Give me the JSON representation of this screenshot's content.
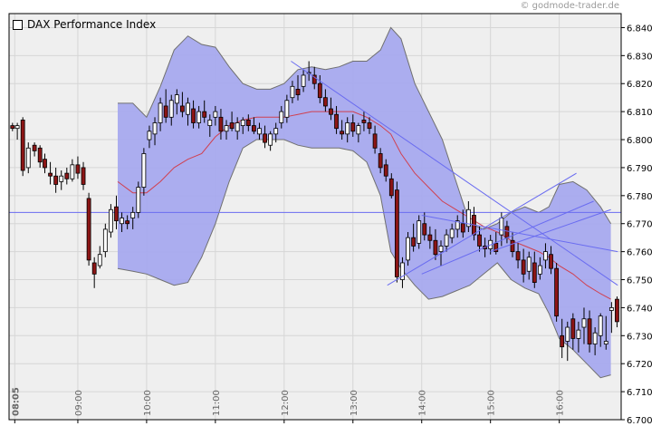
{
  "copyright": "© godmode-trader.de",
  "legend": {
    "label": "DAX Performance Index"
  },
  "colors": {
    "plot_bg": "#efefef",
    "band_fill": "#a7a9ee",
    "band_edge": "#707070",
    "mid_line": "#d04050",
    "trend_line": "#6a6cf0",
    "candle_down": "#8c1515",
    "candle_up": "#ffffff",
    "candle_edge": "#000000"
  },
  "chart_data": {
    "type": "candlestick",
    "title": "DAX Performance Index",
    "ylim": [
      6700,
      6845
    ],
    "y_ticks": [
      "6.700",
      "6.710",
      "6.720",
      "6.730",
      "6.740",
      "6.750",
      "6.760",
      "6.770",
      "6.780",
      "6.790",
      "6.800",
      "6.810",
      "6.820",
      "6.830",
      "6.840"
    ],
    "x_range": [
      8.0,
      16.9
    ],
    "x_ticks": [
      {
        "t": 8.083,
        "label": "08:05",
        "bold": true
      },
      {
        "t": 9.0,
        "label": "09:00"
      },
      {
        "t": 10.0,
        "label": "10:00"
      },
      {
        "t": 11.0,
        "label": "11:00"
      },
      {
        "t": 12.0,
        "label": "12:00"
      },
      {
        "t": 13.0,
        "label": "13:00"
      },
      {
        "t": 14.0,
        "label": "14:00"
      },
      {
        "t": 15.0,
        "label": "15:00"
      },
      {
        "t": 16.0,
        "label": "16:00"
      }
    ],
    "grid": true,
    "horizontal_line": 6774,
    "bollinger_upper": [
      [
        9.58,
        6813
      ],
      [
        9.8,
        6813
      ],
      [
        10.0,
        6808
      ],
      [
        10.2,
        6819
      ],
      [
        10.4,
        6832
      ],
      [
        10.6,
        6837
      ],
      [
        10.8,
        6834
      ],
      [
        11.0,
        6833
      ],
      [
        11.2,
        6826
      ],
      [
        11.4,
        6820
      ],
      [
        11.6,
        6818
      ],
      [
        11.8,
        6818
      ],
      [
        12.0,
        6820
      ],
      [
        12.2,
        6825
      ],
      [
        12.4,
        6826
      ],
      [
        12.6,
        6825
      ],
      [
        12.8,
        6826
      ],
      [
        13.0,
        6828
      ],
      [
        13.2,
        6828
      ],
      [
        13.4,
        6832
      ],
      [
        13.55,
        6840
      ],
      [
        13.7,
        6836
      ],
      [
        13.9,
        6820
      ],
      [
        14.1,
        6810
      ],
      [
        14.3,
        6800
      ],
      [
        14.5,
        6785
      ],
      [
        14.7,
        6770
      ],
      [
        14.9,
        6768
      ],
      [
        15.1,
        6770
      ],
      [
        15.3,
        6774
      ],
      [
        15.5,
        6776
      ],
      [
        15.7,
        6774
      ],
      [
        15.85,
        6776
      ],
      [
        16.0,
        6784
      ],
      [
        16.2,
        6785
      ],
      [
        16.4,
        6782
      ],
      [
        16.6,
        6776
      ],
      [
        16.75,
        6770
      ]
    ],
    "bollinger_lower": [
      [
        9.58,
        6754
      ],
      [
        9.8,
        6753
      ],
      [
        10.0,
        6752
      ],
      [
        10.2,
        6750
      ],
      [
        10.4,
        6748
      ],
      [
        10.6,
        6749
      ],
      [
        10.8,
        6758
      ],
      [
        11.0,
        6770
      ],
      [
        11.2,
        6785
      ],
      [
        11.4,
        6797
      ],
      [
        11.6,
        6800
      ],
      [
        11.8,
        6800
      ],
      [
        12.0,
        6800
      ],
      [
        12.2,
        6798
      ],
      [
        12.4,
        6797
      ],
      [
        12.6,
        6797
      ],
      [
        12.8,
        6797
      ],
      [
        13.0,
        6796
      ],
      [
        13.2,
        6792
      ],
      [
        13.4,
        6780
      ],
      [
        13.55,
        6760
      ],
      [
        13.7,
        6754
      ],
      [
        13.9,
        6748
      ],
      [
        14.1,
        6743
      ],
      [
        14.3,
        6744
      ],
      [
        14.5,
        6746
      ],
      [
        14.7,
        6748
      ],
      [
        14.9,
        6752
      ],
      [
        15.1,
        6756
      ],
      [
        15.3,
        6750
      ],
      [
        15.5,
        6747
      ],
      [
        15.7,
        6745
      ],
      [
        15.85,
        6738
      ],
      [
        16.0,
        6729
      ],
      [
        16.2,
        6725
      ],
      [
        16.4,
        6720
      ],
      [
        16.6,
        6715
      ],
      [
        16.75,
        6716
      ]
    ],
    "moving_average": [
      [
        9.58,
        6785
      ],
      [
        9.8,
        6781
      ],
      [
        10.0,
        6781
      ],
      [
        10.2,
        6785
      ],
      [
        10.4,
        6790
      ],
      [
        10.6,
        6793
      ],
      [
        10.8,
        6795
      ],
      [
        11.0,
        6801
      ],
      [
        11.2,
        6805
      ],
      [
        11.4,
        6807
      ],
      [
        11.6,
        6808
      ],
      [
        11.8,
        6808
      ],
      [
        12.0,
        6808
      ],
      [
        12.2,
        6809
      ],
      [
        12.4,
        6810
      ],
      [
        12.6,
        6810
      ],
      [
        12.8,
        6810
      ],
      [
        13.0,
        6810
      ],
      [
        13.2,
        6808
      ],
      [
        13.4,
        6805
      ],
      [
        13.55,
        6802
      ],
      [
        13.7,
        6795
      ],
      [
        13.9,
        6788
      ],
      [
        14.1,
        6783
      ],
      [
        14.3,
        6778
      ],
      [
        14.5,
        6775
      ],
      [
        14.7,
        6772
      ],
      [
        14.9,
        6769
      ],
      [
        15.1,
        6767
      ],
      [
        15.3,
        6764
      ],
      [
        15.5,
        6762
      ],
      [
        15.7,
        6760
      ],
      [
        15.85,
        6758
      ],
      [
        16.0,
        6755
      ],
      [
        16.2,
        6752
      ],
      [
        16.4,
        6748
      ],
      [
        16.6,
        6745
      ],
      [
        16.75,
        6743
      ]
    ],
    "trend_lines": [
      [
        [
          12.1,
          6828
        ],
        [
          16.85,
          6748
        ]
      ],
      [
        [
          13.5,
          6748
        ],
        [
          16.25,
          6788
        ]
      ],
      [
        [
          14.0,
          6752
        ],
        [
          16.5,
          6778
        ]
      ],
      [
        [
          14.0,
          6773
        ],
        [
          16.85,
          6760
        ]
      ],
      [
        [
          15.0,
          6760
        ],
        [
          16.75,
          6775
        ]
      ]
    ],
    "candles": [
      [
        8.05,
        6805,
        6806,
        6803,
        6804
      ],
      [
        8.12,
        6804,
        6806,
        6800,
        6805
      ],
      [
        8.2,
        6807,
        6808,
        6787,
        6789
      ],
      [
        8.28,
        6790,
        6799,
        6788,
        6797
      ],
      [
        8.37,
        6798,
        6799,
        6794,
        6796
      ],
      [
        8.45,
        6797,
        6798,
        6790,
        6792
      ],
      [
        8.52,
        6793,
        6795,
        6788,
        6790
      ],
      [
        8.6,
        6788,
        6792,
        6784,
        6787
      ],
      [
        8.68,
        6787,
        6790,
        6781,
        6784
      ],
      [
        8.76,
        6785,
        6789,
        6782,
        6787
      ],
      [
        8.84,
        6788,
        6790,
        6784,
        6786
      ],
      [
        8.92,
        6786,
        6793,
        6785,
        6791
      ],
      [
        9.0,
        6791,
        6794,
        6786,
        6788
      ],
      [
        9.08,
        6790,
        6792,
        6782,
        6784
      ],
      [
        9.16,
        6779,
        6781,
        6755,
        6757
      ],
      [
        9.24,
        6756,
        6758,
        6747,
        6752
      ],
      [
        9.32,
        6755,
        6762,
        6754,
        6759
      ],
      [
        9.4,
        6760,
        6770,
        6758,
        6768
      ],
      [
        9.48,
        6767,
        6777,
        6765,
        6775
      ],
      [
        9.56,
        6776,
        6780,
        6768,
        6771
      ],
      [
        9.64,
        6770,
        6774,
        6767,
        6772
      ],
      [
        9.72,
        6771,
        6773,
        6768,
        6770
      ],
      [
        9.8,
        6772,
        6776,
        6768,
        6774
      ],
      [
        9.88,
        6774,
        6785,
        6772,
        6783
      ],
      [
        9.96,
        6783,
        6797,
        6780,
        6795
      ],
      [
        10.04,
        6800,
        6805,
        6797,
        6803
      ],
      [
        10.12,
        6802,
        6808,
        6798,
        6806
      ],
      [
        10.2,
        6806,
        6815,
        6803,
        6813
      ],
      [
        10.28,
        6812,
        6818,
        6806,
        6808
      ],
      [
        10.36,
        6808,
        6816,
        6805,
        6814
      ],
      [
        10.44,
        6813,
        6818,
        6809,
        6816
      ],
      [
        10.52,
        6812,
        6817,
        6808,
        6810
      ],
      [
        10.6,
        6809,
        6815,
        6805,
        6813
      ],
      [
        10.68,
        6811,
        6814,
        6804,
        6806
      ],
      [
        10.76,
        6806,
        6812,
        6804,
        6810
      ],
      [
        10.84,
        6810,
        6814,
        6806,
        6808
      ],
      [
        10.92,
        6805,
        6809,
        6801,
        6807
      ],
      [
        11.0,
        6808,
        6812,
        6805,
        6810
      ],
      [
        11.08,
        6808,
        6811,
        6800,
        6803
      ],
      [
        11.16,
        6803,
        6807,
        6800,
        6805
      ],
      [
        11.24,
        6806,
        6810,
        6803,
        6804
      ],
      [
        11.32,
        6803,
        6808,
        6800,
        6806
      ],
      [
        11.4,
        6805,
        6808,
        6802,
        6807
      ],
      [
        11.48,
        6807,
        6809,
        6803,
        6805
      ],
      [
        11.56,
        6805,
        6808,
        6802,
        6803
      ],
      [
        11.64,
        6802,
        6806,
        6800,
        6804
      ],
      [
        11.72,
        6802,
        6805,
        6797,
        6799
      ],
      [
        11.8,
        6798,
        6803,
        6796,
        6802
      ],
      [
        11.88,
        6802,
        6806,
        6799,
        6804
      ],
      [
        11.96,
        6806,
        6812,
        6804,
        6810
      ],
      [
        12.04,
        6808,
        6816,
        6806,
        6814
      ],
      [
        12.12,
        6815,
        6821,
        6813,
        6819
      ],
      [
        12.2,
        6818,
        6823,
        6814,
        6816
      ],
      [
        12.28,
        6819,
        6825,
        6817,
        6823
      ],
      [
        12.36,
        6824,
        6828,
        6821,
        6824
      ],
      [
        12.44,
        6823,
        6826,
        6818,
        6820
      ],
      [
        12.52,
        6820,
        6823,
        6813,
        6815
      ],
      [
        12.6,
        6815,
        6818,
        6810,
        6812
      ],
      [
        12.68,
        6811,
        6815,
        6807,
        6809
      ],
      [
        12.76,
        6809,
        6812,
        6802,
        6804
      ],
      [
        12.84,
        6803,
        6807,
        6800,
        6802
      ],
      [
        12.92,
        6802,
        6808,
        6799,
        6806
      ],
      [
        13.0,
        6806,
        6809,
        6801,
        6803
      ],
      [
        13.08,
        6802,
        6806,
        6799,
        6805
      ],
      [
        13.16,
        6807,
        6810,
        6803,
        6806
      ],
      [
        13.24,
        6806,
        6808,
        6802,
        6804
      ],
      [
        13.32,
        6802,
        6805,
        6795,
        6797
      ],
      [
        13.4,
        6795,
        6797,
        6788,
        6790
      ],
      [
        13.48,
        6791,
        6793,
        6785,
        6787
      ],
      [
        13.56,
        6786,
        6788,
        6779,
        6780
      ],
      [
        13.64,
        6782,
        6785,
        6749,
        6751
      ],
      [
        13.72,
        6750,
        6758,
        6747,
        6756
      ],
      [
        13.8,
        6757,
        6767,
        6755,
        6765
      ],
      [
        13.88,
        6765,
        6770,
        6760,
        6762
      ],
      [
        13.96,
        6763,
        6773,
        6761,
        6771
      ],
      [
        14.04,
        6770,
        6774,
        6764,
        6766
      ],
      [
        14.12,
        6766,
        6769,
        6761,
        6764
      ],
      [
        14.2,
        6764,
        6768,
        6757,
        6759
      ],
      [
        14.28,
        6760,
        6764,
        6755,
        6762
      ],
      [
        14.36,
        6762,
        6768,
        6760,
        6766
      ],
      [
        14.44,
        6765,
        6770,
        6763,
        6768
      ],
      [
        14.52,
        6768,
        6773,
        6765,
        6771
      ],
      [
        14.6,
        6770,
        6775,
        6765,
        6767
      ],
      [
        14.68,
        6769,
        6778,
        6767,
        6775
      ],
      [
        14.76,
        6773,
        6776,
        6764,
        6766
      ],
      [
        14.84,
        6766,
        6769,
        6760,
        6762
      ],
      [
        14.92,
        6762,
        6765,
        6758,
        6761
      ],
      [
        15.0,
        6761,
        6766,
        6759,
        6764
      ],
      [
        15.08,
        6763,
        6767,
        6759,
        6760
      ],
      [
        15.16,
        6766,
        6774,
        6762,
        6772
      ],
      [
        15.24,
        6769,
        6771,
        6763,
        6765
      ],
      [
        15.32,
        6764,
        6767,
        6758,
        6760
      ],
      [
        15.4,
        6760,
        6763,
        6754,
        6757
      ],
      [
        15.48,
        6757,
        6761,
        6749,
        6752
      ],
      [
        15.56,
        6753,
        6760,
        6750,
        6758
      ],
      [
        15.64,
        6756,
        6760,
        6747,
        6749
      ],
      [
        15.72,
        6752,
        6758,
        6750,
        6755
      ],
      [
        15.8,
        6757,
        6763,
        6754,
        6760
      ],
      [
        15.88,
        6759,
        6762,
        6752,
        6754
      ],
      [
        15.96,
        6754,
        6756,
        6735,
        6737
      ],
      [
        16.04,
        6730,
        6736,
        6722,
        6726
      ],
      [
        16.12,
        6728,
        6735,
        6721,
        6733
      ],
      [
        16.2,
        6736,
        6738,
        6725,
        6729
      ],
      [
        16.28,
        6729,
        6735,
        6724,
        6732
      ],
      [
        16.36,
        6733,
        6740,
        6727,
        6736
      ],
      [
        16.44,
        6736,
        6739,
        6724,
        6727
      ],
      [
        16.52,
        6727,
        6733,
        6723,
        6731
      ],
      [
        16.6,
        6730,
        6738,
        6726,
        6737
      ],
      [
        16.68,
        6727,
        6737,
        6725,
        6728
      ],
      [
        16.76,
        6739,
        6742,
        6731,
        6740
      ],
      [
        16.84,
        6743,
        6744,
        6733,
        6735
      ]
    ]
  }
}
